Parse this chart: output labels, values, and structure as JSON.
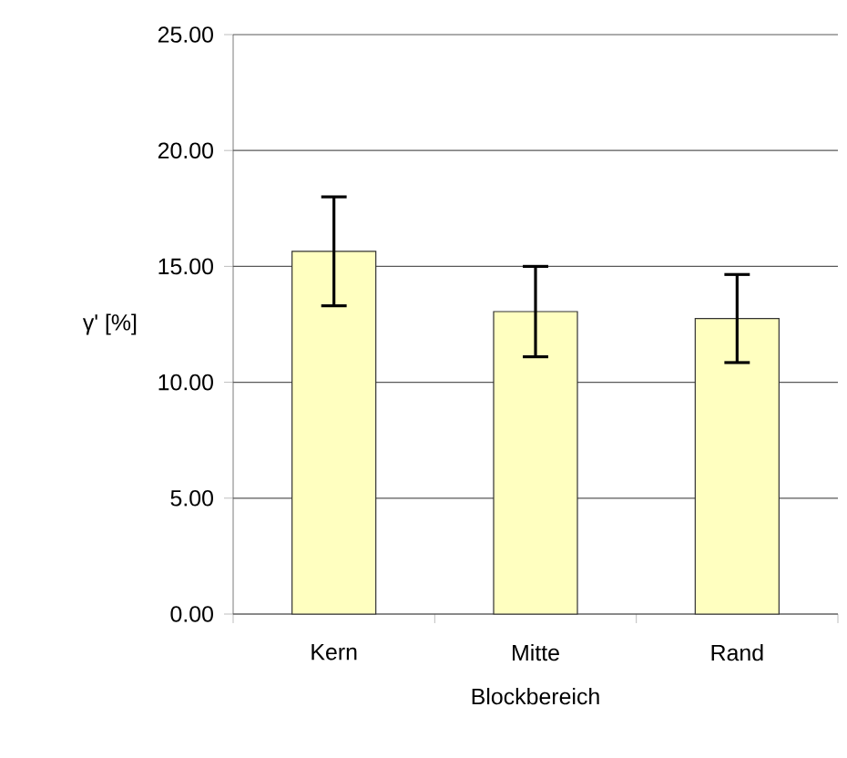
{
  "chart_data": {
    "type": "bar",
    "xlabel": "Blockbereich",
    "ylabel": "γ' [%]",
    "categories": [
      "Kern",
      "Mitte",
      "Rand"
    ],
    "values": [
      15.65,
      13.05,
      12.75
    ],
    "errors": [
      2.35,
      1.95,
      1.9
    ],
    "color": "#ffffc0",
    "ylim": [
      0,
      25
    ],
    "yticks": [
      {
        "value": 0,
        "label": "0.00"
      },
      {
        "value": 5,
        "label": "5.00"
      },
      {
        "value": 10,
        "label": "10.00"
      },
      {
        "value": 15,
        "label": "15.00"
      },
      {
        "value": 20,
        "label": "20.00"
      },
      {
        "value": 25,
        "label": "25.00"
      }
    ],
    "grid": "y"
  }
}
